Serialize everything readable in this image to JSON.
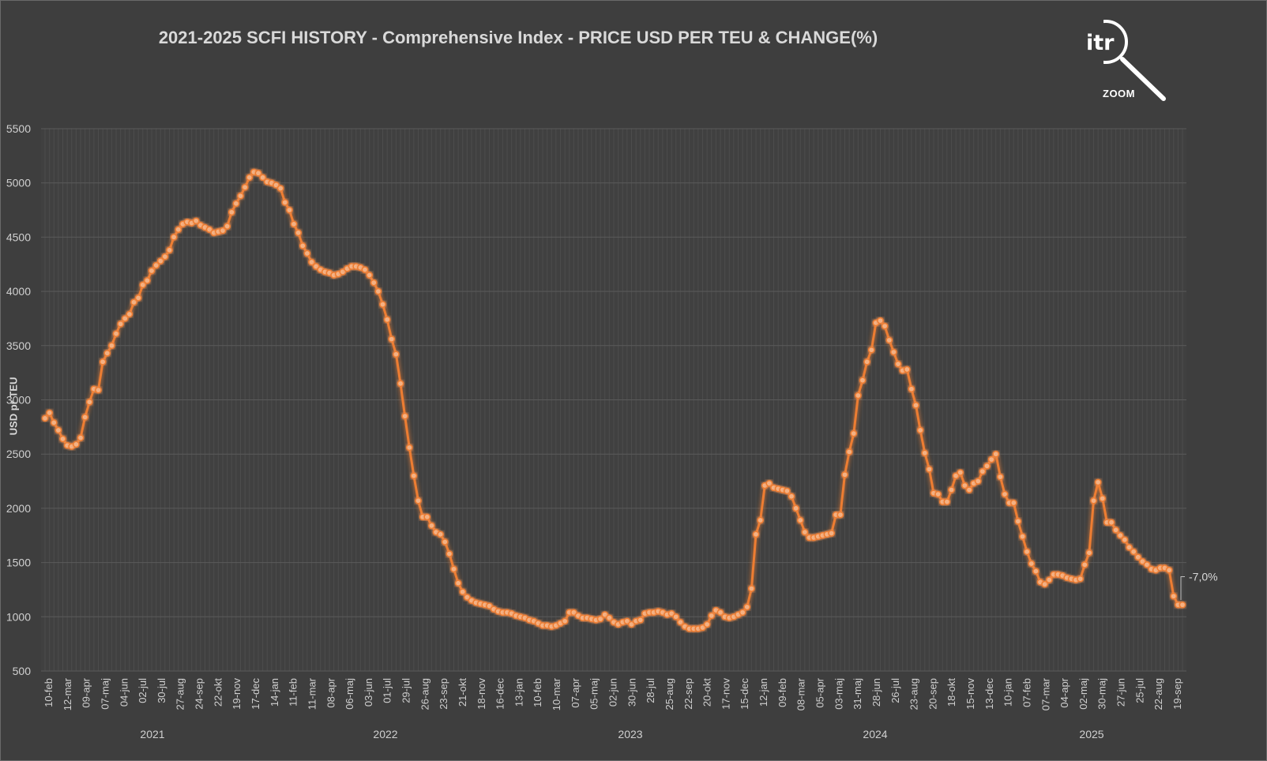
{
  "chart_data": {
    "type": "line",
    "title": "2021-2025 SCFI HISTORY - Comprehensive Index - PRICE USD PER TEU & CHANGE(%)",
    "ylabel": "USD pr TEU",
    "ylim": [
      500,
      5500
    ],
    "yticks": [
      500,
      1000,
      1500,
      2000,
      2500,
      3000,
      3500,
      4000,
      4500,
      5000,
      5500
    ],
    "grid": true,
    "series_color": "#ed7d31",
    "xtick_labels": [
      "10-feb",
      "12-mar",
      "09-apr",
      "07-maj",
      "04-jun",
      "02-jul",
      "30-jul",
      "27-aug",
      "24-sep",
      "22-okt",
      "19-nov",
      "17-dec",
      "14-jan",
      "11-feb",
      "11-mar",
      "08-apr",
      "06-maj",
      "03-jun",
      "01-jul",
      "29-jul",
      "26-aug",
      "23-sep",
      "21-okt",
      "18-nov",
      "16-dec",
      "13-jan",
      "10-feb",
      "10-mar",
      "07-apr",
      "05-maj",
      "02-jun",
      "30-jun",
      "28-jul",
      "25-aug",
      "22-sep",
      "20-okt",
      "17-nov",
      "15-dec",
      "12-jan",
      "09-feb",
      "08-mar",
      "05-apr",
      "03-maj",
      "31-maj",
      "28-jun",
      "26-jul",
      "23-aug",
      "20-sep",
      "18-okt",
      "15-nov",
      "13-dec",
      "10-jan",
      "07-feb",
      "07-mar",
      "04-apr",
      "02-maj",
      "30-maj",
      "27-jun",
      "25-jul",
      "22-aug",
      "19-sep"
    ],
    "year_labels": [
      "2021",
      "2022",
      "2023",
      "2024",
      "2025"
    ],
    "values": [
      2830,
      2880,
      2790,
      2720,
      2640,
      2580,
      2570,
      2590,
      2650,
      2840,
      2980,
      3100,
      3090,
      3350,
      3430,
      3500,
      3610,
      3700,
      3750,
      3790,
      3900,
      3940,
      4060,
      4100,
      4190,
      4240,
      4280,
      4320,
      4380,
      4500,
      4570,
      4620,
      4640,
      4630,
      4650,
      4610,
      4590,
      4570,
      4540,
      4550,
      4560,
      4600,
      4730,
      4810,
      4880,
      4960,
      5050,
      5100,
      5090,
      5050,
      5010,
      5000,
      4980,
      4950,
      4820,
      4750,
      4620,
      4540,
      4420,
      4350,
      4270,
      4230,
      4200,
      4180,
      4170,
      4150,
      4160,
      4180,
      4210,
      4230,
      4230,
      4220,
      4200,
      4150,
      4080,
      4000,
      3880,
      3740,
      3560,
      3420,
      3150,
      2850,
      2560,
      2300,
      2070,
      1920,
      1920,
      1840,
      1780,
      1760,
      1690,
      1580,
      1440,
      1310,
      1230,
      1180,
      1150,
      1130,
      1120,
      1110,
      1100,
      1070,
      1050,
      1040,
      1040,
      1030,
      1010,
      1000,
      990,
      970,
      960,
      940,
      920,
      920,
      910,
      920,
      940,
      960,
      1040,
      1040,
      1010,
      990,
      990,
      980,
      970,
      980,
      1020,
      990,
      950,
      930,
      950,
      960,
      930,
      960,
      970,
      1030,
      1040,
      1040,
      1050,
      1040,
      1020,
      1030,
      1000,
      950,
      910,
      890,
      890,
      890,
      900,
      930,
      1010,
      1060,
      1040,
      1000,
      990,
      1000,
      1020,
      1040,
      1090,
      1260,
      1760,
      1890,
      2210,
      2230,
      2190,
      2180,
      2170,
      2160,
      2110,
      2000,
      1890,
      1780,
      1730,
      1730,
      1740,
      1750,
      1760,
      1770,
      1940,
      1940,
      2310,
      2520,
      2690,
      3040,
      3180,
      3350,
      3460,
      3710,
      3730,
      3680,
      3550,
      3440,
      3330,
      3270,
      3280,
      3100,
      2950,
      2720,
      2510,
      2360,
      2140,
      2130,
      2060,
      2060,
      2170,
      2300,
      2330,
      2210,
      2170,
      2230,
      2250,
      2340,
      2390,
      2450,
      2500,
      2290,
      2130,
      2050,
      2050,
      1880,
      1740,
      1600,
      1490,
      1420,
      1320,
      1300,
      1340,
      1390,
      1390,
      1380,
      1360,
      1350,
      1340,
      1350,
      1480,
      1590,
      2070,
      2240,
      2090,
      1870,
      1870,
      1800,
      1750,
      1710,
      1640,
      1600,
      1550,
      1510,
      1480,
      1440,
      1430,
      1450,
      1450,
      1430,
      1190,
      1110,
      1110
    ],
    "annotations": [
      {
        "label": "-7,0%"
      }
    ]
  },
  "logo": {
    "text": "itr",
    "caption": "ZOOM"
  }
}
